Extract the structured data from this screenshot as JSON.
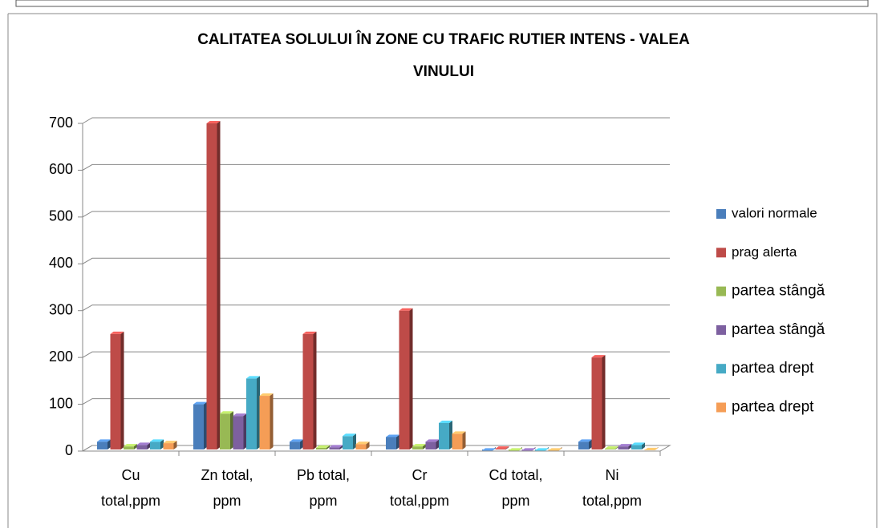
{
  "chart_data": {
    "type": "bar3d",
    "title": "CALITATEA SOLULUI ÎN ZONE CU TRAFIC RUTIER INTENS - VALEA VINULUI",
    "categories": [
      "Cu total,ppm",
      "Zn total, ppm",
      "Pb total, ppm",
      "Cr total,ppm",
      "Cd total, ppm",
      "Ni total,ppm"
    ],
    "series": [
      {
        "name": "valori normale",
        "color": "#4a7ebb",
        "values": [
          20,
          100,
          20,
          30,
          1,
          20
        ]
      },
      {
        "name": "prag alerta",
        "color": "#be4b48",
        "values": [
          250,
          700,
          250,
          300,
          5,
          200
        ]
      },
      {
        "name": "partea stângă",
        "color": "#98b954",
        "values": [
          10,
          80,
          7,
          10,
          1,
          5
        ]
      },
      {
        "name": "partea stângă",
        "color": "#7d60a0",
        "values": [
          13,
          75,
          8,
          20,
          1,
          10
        ]
      },
      {
        "name": "partea drept",
        "color": "#46aac5",
        "values": [
          20,
          155,
          32,
          60,
          1,
          13
        ]
      },
      {
        "name": "partea drept",
        "color": "#f59d56",
        "values": [
          17,
          118,
          15,
          37,
          1,
          2
        ]
      }
    ],
    "ylim": [
      0,
      700
    ],
    "yticks": [
      0,
      100,
      200,
      300,
      400,
      500,
      600,
      700
    ],
    "grid": true,
    "legend": "right"
  }
}
